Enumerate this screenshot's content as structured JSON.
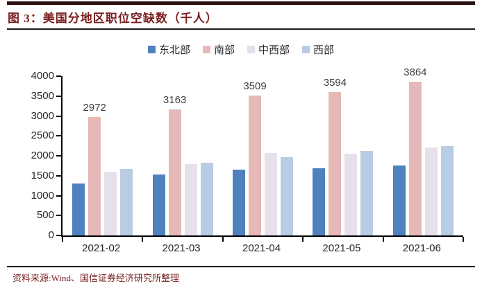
{
  "title": "图 3：美国分地区职位空缺数（千人）",
  "source": "资料来源:Wind、国信证券经济研究所整理",
  "colors": {
    "title_text": "#7a1f1f",
    "source_text": "#7a1f1f",
    "top_bar": "#2b0e0e",
    "rule": "#1a1a1a",
    "axis": "#000000",
    "axis_text": "#262626",
    "data_label_text": "#404040",
    "series_northeast": "#4F81BD",
    "series_south": "#E6B9B8",
    "series_midwest": "#E6E0EC",
    "series_west": "#B8CCE4"
  },
  "chart_data": {
    "type": "bar",
    "title": "图 3：美国分地区职位空缺数（千人）",
    "categories": [
      "2021-02",
      "2021-03",
      "2021-04",
      "2021-05",
      "2021-06"
    ],
    "series": [
      {
        "name": "东北部",
        "color": "#4F81BD",
        "values": [
          1310,
          1530,
          1650,
          1690,
          1760
        ],
        "data_labels": false
      },
      {
        "name": "南部",
        "color": "#E6B9B8",
        "values": [
          2972,
          3163,
          3509,
          3594,
          3864
        ],
        "data_labels": true
      },
      {
        "name": "中西部",
        "color": "#E6E0EC",
        "values": [
          1600,
          1790,
          2070,
          2060,
          2210
        ],
        "data_labels": false
      },
      {
        "name": "西部",
        "color": "#B8CCE4",
        "values": [
          1670,
          1820,
          1970,
          2130,
          2240
        ],
        "data_labels": false
      }
    ],
    "xlabel": "",
    "ylabel": "",
    "ylim": [
      0,
      4000
    ],
    "ytick_step": 500,
    "grid": false,
    "legend_position": "top",
    "tick_marks": "outside"
  }
}
